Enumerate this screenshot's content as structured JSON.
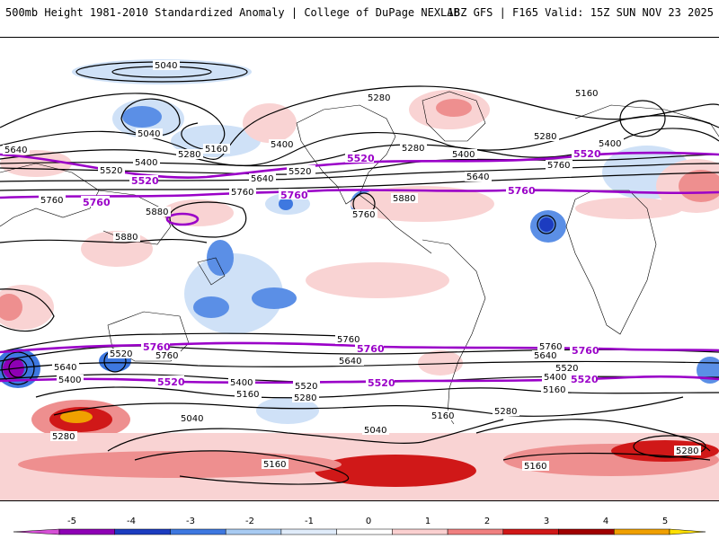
{
  "header": {
    "title_left": "500mb Height 1981-2010 Standardized Anomaly | College of DuPage NEXLAB",
    "title_right": "18Z GFS | F165 Valid: 15Z SUN NOV 23 2025"
  },
  "contour_labels": {
    "c5040": "5040",
    "c5160": "5160",
    "c5280": "5280",
    "c5400": "5400",
    "c5520": "5520",
    "c5640": "5640",
    "c5760": "5760",
    "c5880": "5880"
  },
  "colorbar": {
    "ticks": [
      "-5",
      "-4",
      "-3",
      "-2",
      "-1",
      "0",
      "1",
      "2",
      "3",
      "4",
      "5"
    ],
    "colors": [
      "#d64fd6",
      "#8e00b5",
      "#1c3cc0",
      "#3e78e0",
      "#a8cbf2",
      "#e0ecfa",
      "#ffffff",
      "#fbd0d0",
      "#f08080",
      "#d01818",
      "#a00000",
      "#f0a000",
      "#ffe000"
    ]
  },
  "colors": {
    "height_contour": "#000000",
    "key_contour": "#9a00c8",
    "land_border": "#000000"
  }
}
